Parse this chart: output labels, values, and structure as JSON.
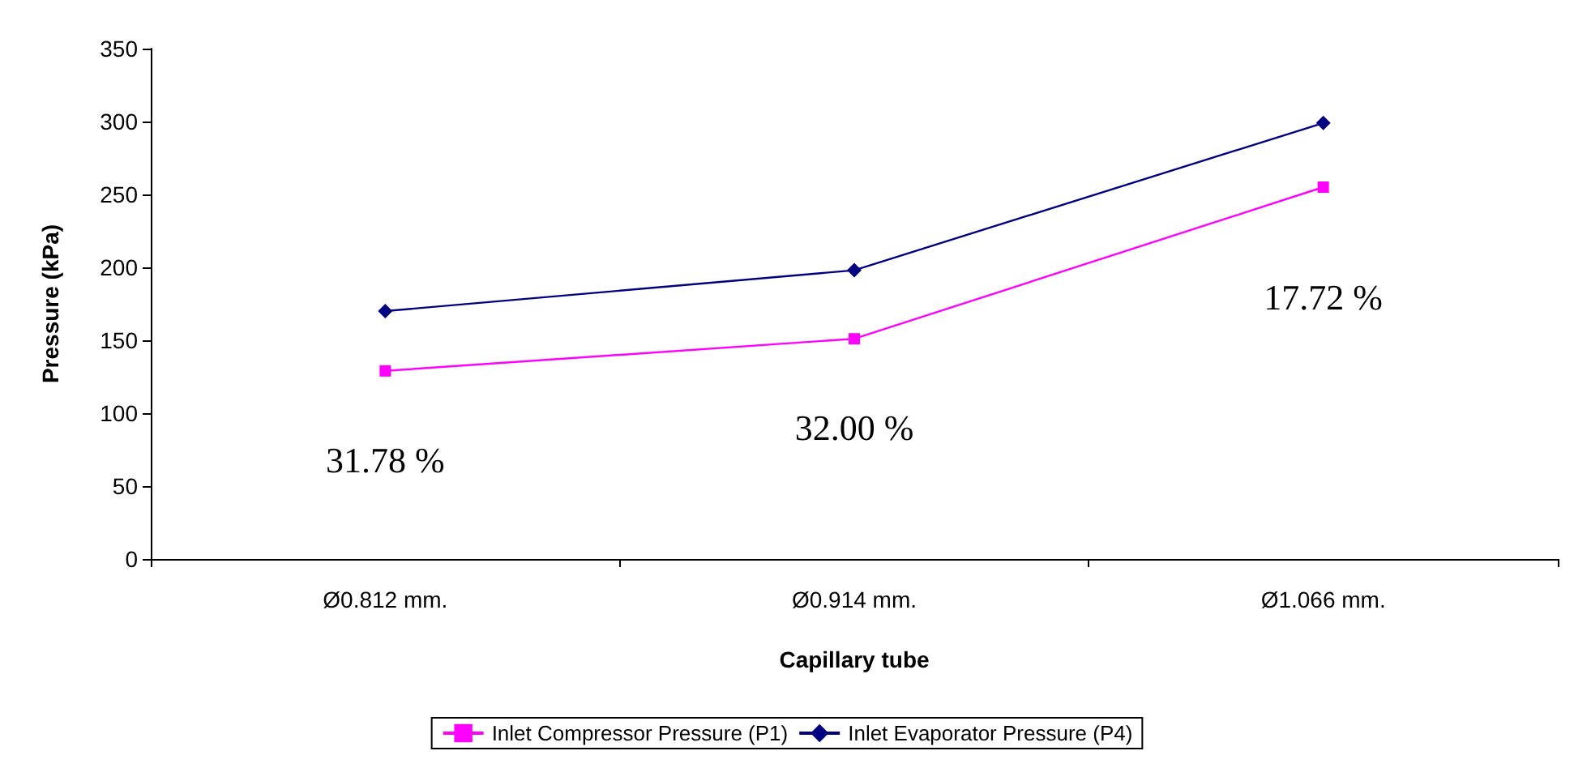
{
  "chart_data": {
    "type": "line",
    "xlabel": "Capillary tube",
    "ylabel": "Pressure (kPa)",
    "categories": [
      "Ø0.812 mm.",
      "Ø0.914 mm.",
      "Ø1.066 mm."
    ],
    "series": [
      {
        "name": "Inlet Compressor Pressure (P1)",
        "color": "#ff00ff",
        "marker": "square",
        "values": [
          129,
          151,
          255
        ]
      },
      {
        "name": "Inlet Evaporator Pressure (P4)",
        "color": "#000080",
        "marker": "diamond",
        "values": [
          170,
          198,
          299
        ]
      }
    ],
    "ylim": [
      0,
      350
    ],
    "yticks": [
      0,
      50,
      100,
      150,
      200,
      250,
      300,
      350
    ],
    "grid": false,
    "legend": "bottom",
    "annotations": [
      "31.78 %",
      "32.00 %",
      "17.72 %"
    ]
  }
}
